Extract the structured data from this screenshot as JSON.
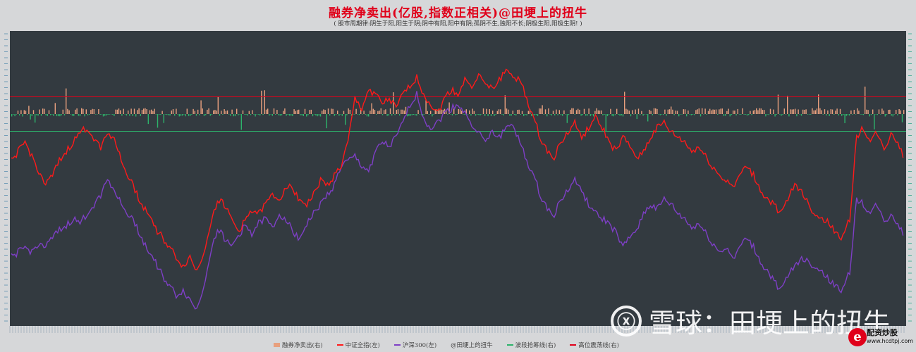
{
  "header": {
    "title": "融券净卖出(亿股,指数正相关)@田埂上的扭牛",
    "subtitle": "( 股市周期律:阴生于阳,阳生于阴;阴中有阳,阳中有阴;孤阴不生,独阳不长;阴极生阳,阳极生阴! )"
  },
  "legend": {
    "items": [
      {
        "label": "融券净卖出(右)",
        "color": "#e8a07e",
        "kind": "bar"
      },
      {
        "label": "中证全指(左)",
        "color": "#ff1a1a",
        "kind": "line"
      },
      {
        "label": "沪深300(左)",
        "color": "#7e3fc6",
        "kind": "line"
      },
      {
        "label": "@田埂上的扭牛",
        "color": "#aaaaaa",
        "kind": "none"
      },
      {
        "label": "波段抢筹线(右)",
        "color": "#2db36b",
        "kind": "line"
      },
      {
        "label": "高位震荡线(右)",
        "color": "#e0001a",
        "kind": "line"
      }
    ]
  },
  "watermark": {
    "logo": "ⓧ",
    "text": "雪球：田埂上的扭牛"
  },
  "brand": {
    "mark": "e",
    "name": "配资炒股",
    "url": "www.hcdtpj.com"
  },
  "chart_data": {
    "type": "line",
    "background": "#333a40",
    "grid": false,
    "threshold_lines": {
      "high_oscillation": 0.35,
      "wave_grab": -0.35
    },
    "series": [
      {
        "name": "中证全指(左)",
        "color": "#ff1a1a",
        "values": [
          0.62,
          0.66,
          0.7,
          0.64,
          0.58,
          0.52,
          0.56,
          0.62,
          0.66,
          0.7,
          0.74,
          0.76,
          0.72,
          0.68,
          0.74,
          0.72,
          0.62,
          0.56,
          0.5,
          0.44,
          0.4,
          0.34,
          0.3,
          0.26,
          0.22,
          0.18,
          0.22,
          0.16,
          0.24,
          0.36,
          0.46,
          0.44,
          0.38,
          0.33,
          0.37,
          0.42,
          0.4,
          0.44,
          0.48,
          0.46,
          0.52,
          0.5,
          0.46,
          0.44,
          0.48,
          0.54,
          0.52,
          0.56,
          0.6,
          0.7,
          0.88,
          0.84,
          0.92,
          0.9,
          0.86,
          0.88,
          0.84,
          0.9,
          0.94,
          0.97,
          0.9,
          0.86,
          0.82,
          0.88,
          0.92,
          0.9,
          0.96,
          0.94,
          0.98,
          0.94,
          0.92,
          0.96,
          1.0,
          0.98,
          0.96,
          0.88,
          0.8,
          0.72,
          0.66,
          0.64,
          0.7,
          0.74,
          0.78,
          0.72,
          0.76,
          0.8,
          0.76,
          0.7,
          0.66,
          0.72,
          0.68,
          0.64,
          0.66,
          0.72,
          0.76,
          0.78,
          0.74,
          0.72,
          0.7,
          0.66,
          0.68,
          0.64,
          0.6,
          0.56,
          0.54,
          0.52,
          0.56,
          0.6,
          0.56,
          0.5,
          0.46,
          0.44,
          0.4,
          0.46,
          0.52,
          0.5,
          0.44,
          0.4,
          0.38,
          0.36,
          0.32,
          0.3,
          0.38,
          0.72,
          0.76,
          0.7,
          0.74,
          0.66,
          0.74,
          0.7,
          0.62
        ]
      },
      {
        "name": "沪深300(左)",
        "color": "#7e3fc6",
        "values": [
          0.22,
          0.24,
          0.26,
          0.24,
          0.28,
          0.26,
          0.3,
          0.33,
          0.35,
          0.38,
          0.36,
          0.4,
          0.44,
          0.48,
          0.55,
          0.5,
          0.44,
          0.4,
          0.36,
          0.3,
          0.24,
          0.2,
          0.14,
          0.1,
          0.06,
          0.08,
          0.04,
          0.0,
          0.1,
          0.24,
          0.34,
          0.3,
          0.26,
          0.31,
          0.35,
          0.32,
          0.36,
          0.38,
          0.34,
          0.4,
          0.38,
          0.32,
          0.3,
          0.36,
          0.4,
          0.44,
          0.48,
          0.52,
          0.6,
          0.62,
          0.64,
          0.6,
          0.58,
          0.66,
          0.7,
          0.68,
          0.72,
          0.78,
          0.86,
          0.9,
          0.8,
          0.76,
          0.78,
          0.82,
          0.84,
          0.86,
          0.82,
          0.78,
          0.74,
          0.7,
          0.74,
          0.72,
          0.76,
          0.78,
          0.7,
          0.62,
          0.56,
          0.48,
          0.42,
          0.4,
          0.46,
          0.5,
          0.54,
          0.5,
          0.44,
          0.4,
          0.38,
          0.36,
          0.32,
          0.26,
          0.3,
          0.34,
          0.4,
          0.44,
          0.42,
          0.46,
          0.44,
          0.4,
          0.38,
          0.34,
          0.36,
          0.32,
          0.28,
          0.24,
          0.26,
          0.22,
          0.26,
          0.3,
          0.26,
          0.2,
          0.16,
          0.12,
          0.08,
          0.14,
          0.18,
          0.22,
          0.2,
          0.18,
          0.16,
          0.12,
          0.1,
          0.08,
          0.16,
          0.46,
          0.44,
          0.4,
          0.44,
          0.36,
          0.4,
          0.36,
          0.3
        ]
      }
    ]
  }
}
